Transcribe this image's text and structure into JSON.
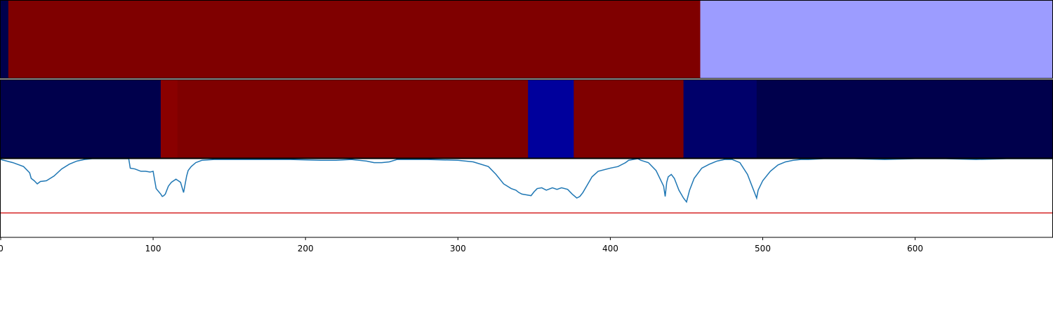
{
  "chart_data": [
    {
      "type": "heatmap",
      "panel": "top-strip",
      "xlim": [
        0,
        690
      ],
      "segments": [
        {
          "start": 0,
          "end": 5,
          "color": "#00004c"
        },
        {
          "start": 5,
          "end": 459,
          "color": "#7f0000"
        },
        {
          "start": 459,
          "end": 690,
          "color": "#9c9cff"
        }
      ]
    },
    {
      "type": "heatmap",
      "panel": "middle-strip",
      "xlim": [
        0,
        690
      ],
      "segments": [
        {
          "start": 0,
          "end": 105,
          "color": "#00004c"
        },
        {
          "start": 105,
          "end": 116,
          "color": "#8a0000"
        },
        {
          "start": 116,
          "end": 346,
          "color": "#7f0000"
        },
        {
          "start": 346,
          "end": 376,
          "color": "#00009c"
        },
        {
          "start": 376,
          "end": 448,
          "color": "#7f0000"
        },
        {
          "start": 448,
          "end": 496,
          "color": "#00006a"
        },
        {
          "start": 496,
          "end": 690,
          "color": "#00004c"
        }
      ]
    },
    {
      "type": "line",
      "panel": "bottom-line",
      "xlim": [
        0,
        690
      ],
      "ylim": [
        0,
        1
      ],
      "grid": false,
      "series": [
        {
          "color": "#1f77b4",
          "x": [
            0,
            8,
            15,
            19,
            20,
            22,
            24,
            26,
            30,
            35,
            40,
            45,
            50,
            55,
            60,
            65,
            70,
            75,
            80,
            84,
            85,
            88,
            92,
            95,
            98,
            100,
            102,
            105,
            106,
            107,
            108,
            110,
            112,
            115,
            118,
            120,
            122,
            123,
            125,
            128,
            132,
            140,
            150,
            170,
            190,
            210,
            220,
            230,
            240,
            245,
            250,
            255,
            260,
            270,
            280,
            300,
            310,
            320,
            325,
            330,
            335,
            338,
            340,
            342,
            345,
            348,
            350,
            352,
            355,
            358,
            362,
            365,
            368,
            372,
            375,
            378,
            380,
            382,
            385,
            388,
            392,
            400,
            405,
            410,
            412,
            415,
            418,
            420,
            425,
            430,
            435,
            436,
            437,
            438,
            440,
            442,
            445,
            448,
            450,
            452,
            455,
            460,
            465,
            470,
            475,
            480,
            485,
            490,
            493,
            495,
            496,
            497,
            500,
            505,
            510,
            515,
            520,
            525,
            530,
            540,
            560,
            580,
            600,
            620,
            640,
            660,
            690
          ],
          "y": [
            0.99,
            0.95,
            0.9,
            0.82,
            0.75,
            0.72,
            0.68,
            0.71,
            0.72,
            0.78,
            0.87,
            0.93,
            0.97,
            0.99,
            1.0,
            1.0,
            1.0,
            1.0,
            1.0,
            1.0,
            0.88,
            0.87,
            0.84,
            0.84,
            0.83,
            0.84,
            0.62,
            0.55,
            0.52,
            0.53,
            0.55,
            0.65,
            0.7,
            0.74,
            0.7,
            0.57,
            0.78,
            0.85,
            0.9,
            0.95,
            0.98,
            0.99,
            0.99,
            0.99,
            0.99,
            0.98,
            0.98,
            0.99,
            0.97,
            0.95,
            0.95,
            0.96,
            0.99,
            0.99,
            0.99,
            0.98,
            0.96,
            0.9,
            0.8,
            0.68,
            0.62,
            0.6,
            0.57,
            0.55,
            0.54,
            0.53,
            0.58,
            0.62,
            0.63,
            0.6,
            0.63,
            0.61,
            0.63,
            0.61,
            0.55,
            0.5,
            0.52,
            0.57,
            0.67,
            0.77,
            0.84,
            0.88,
            0.9,
            0.95,
            0.98,
            0.99,
            1.0,
            0.98,
            0.95,
            0.85,
            0.65,
            0.52,
            0.7,
            0.77,
            0.8,
            0.75,
            0.6,
            0.5,
            0.45,
            0.6,
            0.75,
            0.88,
            0.93,
            0.97,
            0.99,
            0.99,
            0.95,
            0.8,
            0.65,
            0.55,
            0.5,
            0.6,
            0.72,
            0.84,
            0.92,
            0.96,
            0.98,
            0.99,
            0.99,
            1.0,
            1.0,
            0.99,
            1.0,
            1.0,
            0.99,
            1.0,
            1.0
          ]
        }
      ],
      "threshold": {
        "y": 0.31,
        "color": "#d62728"
      },
      "xticks": [
        {
          "value": 0,
          "label": "0"
        },
        {
          "value": 100,
          "label": "100"
        },
        {
          "value": 200,
          "label": "200"
        },
        {
          "value": 300,
          "label": "300"
        },
        {
          "value": 400,
          "label": "400"
        },
        {
          "value": 500,
          "label": "500"
        },
        {
          "value": 600,
          "label": "600"
        }
      ]
    }
  ]
}
